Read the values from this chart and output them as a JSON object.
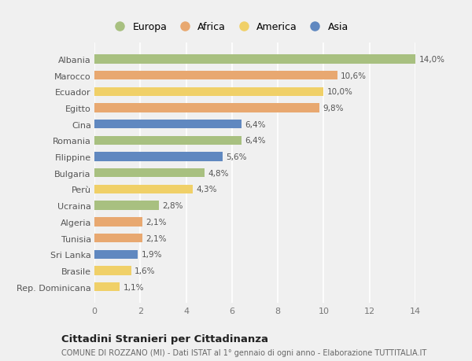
{
  "countries": [
    "Albania",
    "Marocco",
    "Ecuador",
    "Egitto",
    "Cina",
    "Romania",
    "Filippine",
    "Bulgaria",
    "Perù",
    "Ucraina",
    "Algeria",
    "Tunisia",
    "Sri Lanka",
    "Brasile",
    "Rep. Dominicana"
  ],
  "values": [
    14.0,
    10.6,
    10.0,
    9.8,
    6.4,
    6.4,
    5.6,
    4.8,
    4.3,
    2.8,
    2.1,
    2.1,
    1.9,
    1.6,
    1.1
  ],
  "labels": [
    "14,0%",
    "10,6%",
    "10,0%",
    "9,8%",
    "6,4%",
    "6,4%",
    "5,6%",
    "4,8%",
    "4,3%",
    "2,8%",
    "2,1%",
    "2,1%",
    "1,9%",
    "1,6%",
    "1,1%"
  ],
  "continents": [
    "Europa",
    "Africa",
    "America",
    "Africa",
    "Asia",
    "Europa",
    "Asia",
    "Europa",
    "America",
    "Europa",
    "Africa",
    "Africa",
    "Asia",
    "America",
    "America"
  ],
  "colors": {
    "Europa": "#a8c080",
    "Africa": "#e8a870",
    "America": "#f0d068",
    "Asia": "#6088c0"
  },
  "title": "Cittadini Stranieri per Cittadinanza",
  "subtitle": "COMUNE DI ROZZANO (MI) - Dati ISTAT al 1° gennaio di ogni anno - Elaborazione TUTTITALIA.IT",
  "xlim": [
    0,
    14
  ],
  "xticks": [
    0,
    2,
    4,
    6,
    8,
    10,
    12,
    14
  ],
  "bg_color": "#f0f0f0",
  "plot_bg_color": "#f0f0f0",
  "grid_color": "#ffffff",
  "bar_height": 0.55,
  "legend_order": [
    "Europa",
    "Africa",
    "America",
    "Asia"
  ]
}
